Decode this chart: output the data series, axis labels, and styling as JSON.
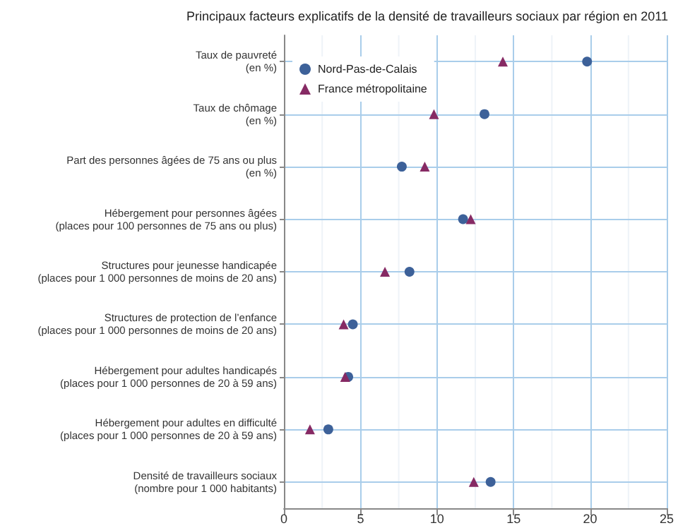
{
  "chart_data": {
    "type": "scatter",
    "orientation": "horizontal",
    "title": "Principaux facteurs explicatifs de la densité de travailleurs sociaux par région en 2011",
    "categories": [
      "Taux de pauvreté\n(en %)",
      "Taux de chômage\n(en %)",
      "Part des personnes âgées de 75 ans ou plus\n(en %)",
      "Hébergement pour personnes âgées\n(places pour 100 personnes de 75 ans ou plus)",
      "Structures pour jeunesse handicapée\n(places pour 1 000 personnes de moins de 20 ans)",
      "Structures de protection de l’enfance\n(places pour 1 000 personnes de moins de 20 ans)",
      "Hébergement pour adultes handicapés\n(places pour 1 000 personnes de 20 à 59 ans)",
      "Hébergement pour adultes en difficulté\n(places pour 1 000 personnes de 20 à 59 ans)",
      "Densité de travailleurs sociaux\n(nombre pour 1 000 habitants)"
    ],
    "series": [
      {
        "name": "Nord-Pas-de-Calais",
        "color": "#3d6199",
        "marker": "circle",
        "values": [
          19.8,
          13.1,
          7.7,
          11.7,
          8.2,
          4.5,
          4.2,
          2.9,
          13.5
        ]
      },
      {
        "name": "France métropolitaine",
        "color": "#862a64",
        "marker": "triangle",
        "values": [
          14.3,
          9.8,
          9.2,
          12.2,
          6.6,
          3.9,
          4.0,
          1.7,
          12.4
        ]
      }
    ],
    "xlim": [
      0,
      25
    ],
    "xticks": [
      0,
      5,
      10,
      15,
      20,
      25
    ],
    "grid": true,
    "legend": "top left"
  }
}
